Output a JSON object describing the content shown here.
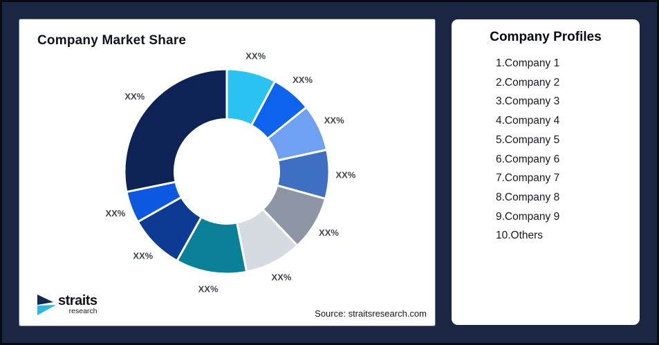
{
  "page": {
    "background_color": "#1B2742",
    "edge_border_color": "#070B14"
  },
  "market_share_card": {
    "title": "Company Market Share",
    "source": "Source: straitsresearch.com",
    "border_color": "#4A72C8",
    "logo": {
      "name": "straits",
      "subname": "research",
      "icon_navy": "#132A4E",
      "icon_cyan": "#2CB7E8"
    }
  },
  "company_profiles_card": {
    "title": "Company Profiles",
    "items": [
      "1.Company 1",
      "2.Company 2",
      "3.Company 3",
      "4.Company 4",
      "5.Company 5",
      "6.Company 6",
      "7.Company 7",
      "8.Company 8",
      "9.Company 9",
      "10.Others"
    ]
  },
  "chart_data": {
    "type": "pie",
    "subtype": "donut",
    "title": "Company Market Share",
    "start_angle_deg": 0,
    "direction": "clockwise",
    "inner_radius_ratio": 0.51,
    "legend_position": "none",
    "slice_label_text": "XX%",
    "label_color": "#3E4551",
    "segments": [
      {
        "name": "Company 1",
        "label": "XX%",
        "value_pct_est": 7.8,
        "color": "#29C2F1"
      },
      {
        "name": "Company 2",
        "label": "XX%",
        "value_pct_est": 6.4,
        "color": "#0D63EE"
      },
      {
        "name": "Company 3",
        "label": "XX%",
        "value_pct_est": 7.4,
        "color": "#6FA0F2"
      },
      {
        "name": "Company 4",
        "label": "XX%",
        "value_pct_est": 7.7,
        "color": "#3E6FC0"
      },
      {
        "name": "Company 5",
        "label": "XX%",
        "value_pct_est": 8.6,
        "color": "#8D96A5"
      },
      {
        "name": "Company 6",
        "label": "XX%",
        "value_pct_est": 9.0,
        "color": "#D6DAE1"
      },
      {
        "name": "Company 7",
        "label": "XX%",
        "value_pct_est": 11.2,
        "color": "#0A8199"
      },
      {
        "name": "Company 8",
        "label": "XX%",
        "value_pct_est": 8.7,
        "color": "#0D3A93"
      },
      {
        "name": "Company 9",
        "label": "XX%",
        "value_pct_est": 5.0,
        "color": "#0C58E1"
      },
      {
        "name": "Others",
        "label": "XX%",
        "value_pct_est": 28.2,
        "color": "#0D2355"
      }
    ]
  }
}
